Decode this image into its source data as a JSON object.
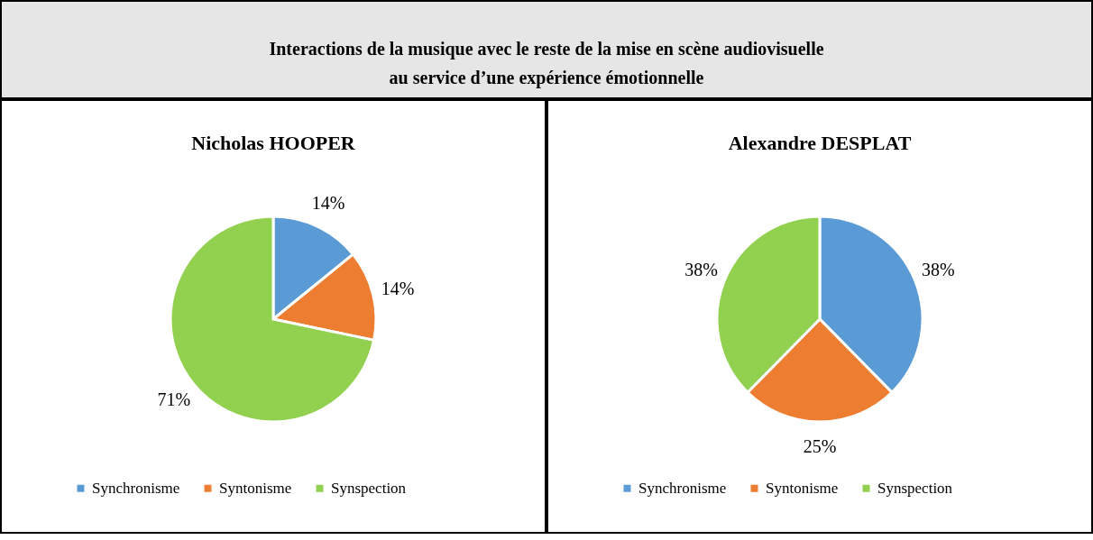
{
  "chart_data": [
    {
      "type": "other",
      "title": "Interactions de la musique avec le reste de la mise en scène audiovisuelle\nau service d’une expérience émotionnelle"
    },
    {
      "type": "pie",
      "title": "Nicholas HOOPER",
      "categories": [
        "Synchronisme",
        "Syntonisme",
        "Synspection"
      ],
      "values": [
        14,
        14,
        71
      ],
      "value_labels": [
        "14%",
        "14%",
        "71%"
      ],
      "colors": [
        "#5b9bd5",
        "#ed7d31",
        "#92d050"
      ],
      "legend": "bottom"
    },
    {
      "type": "pie",
      "title": "Alexandre DESPLAT",
      "categories": [
        "Synchronisme",
        "Syntonisme",
        "Synspection"
      ],
      "values": [
        38,
        25,
        38
      ],
      "value_labels": [
        "38%",
        "25%",
        "38%"
      ],
      "colors": [
        "#5b9bd5",
        "#ed7d31",
        "#92d050"
      ],
      "legend": "bottom"
    }
  ]
}
